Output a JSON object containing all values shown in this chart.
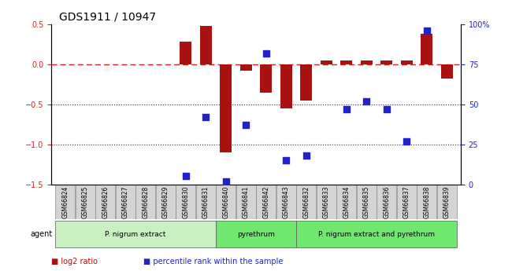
{
  "title": "GDS1911 / 10947",
  "samples": [
    "GSM66824",
    "GSM66825",
    "GSM66826",
    "GSM66827",
    "GSM66828",
    "GSM66829",
    "GSM66830",
    "GSM66831",
    "GSM66840",
    "GSM66841",
    "GSM66842",
    "GSM66843",
    "GSM66832",
    "GSM66833",
    "GSM66834",
    "GSM66835",
    "GSM66836",
    "GSM66837",
    "GSM66838",
    "GSM66839"
  ],
  "log2_ratio": [
    0.0,
    0.0,
    0.0,
    0.0,
    0.0,
    0.0,
    0.28,
    0.48,
    -1.1,
    -0.08,
    -0.35,
    -0.55,
    -0.45,
    0.05,
    0.05,
    0.05,
    0.05,
    0.05,
    0.38,
    -0.18
  ],
  "percentile": [
    null,
    null,
    null,
    null,
    null,
    null,
    0.05,
    0.42,
    0.02,
    0.37,
    0.82,
    0.15,
    0.18,
    null,
    0.47,
    0.52,
    0.47,
    0.27,
    0.96,
    null
  ],
  "groups": [
    {
      "label": "P. nigrum extract",
      "start": 0,
      "end": 7,
      "color": "#b8f0b0"
    },
    {
      "label": "pyrethrum",
      "start": 8,
      "end": 11,
      "color": "#70e870"
    },
    {
      "label": "P. nigrum extract and pyrethrum",
      "start": 12,
      "end": 19,
      "color": "#70e870"
    }
  ],
  "ylim_left": [
    -1.5,
    0.5
  ],
  "ylim_right": [
    0,
    100
  ],
  "yticks_left": [
    -1.5,
    -1.0,
    -0.5,
    0.0,
    0.5
  ],
  "yticks_right": [
    0,
    25,
    50,
    75,
    100
  ],
  "bar_color": "#aa1111",
  "dot_color": "#2222cc",
  "zero_line_color": "#cc2222",
  "grid_line_color": "#333333",
  "bar_width": 0.6,
  "dot_size": 30
}
